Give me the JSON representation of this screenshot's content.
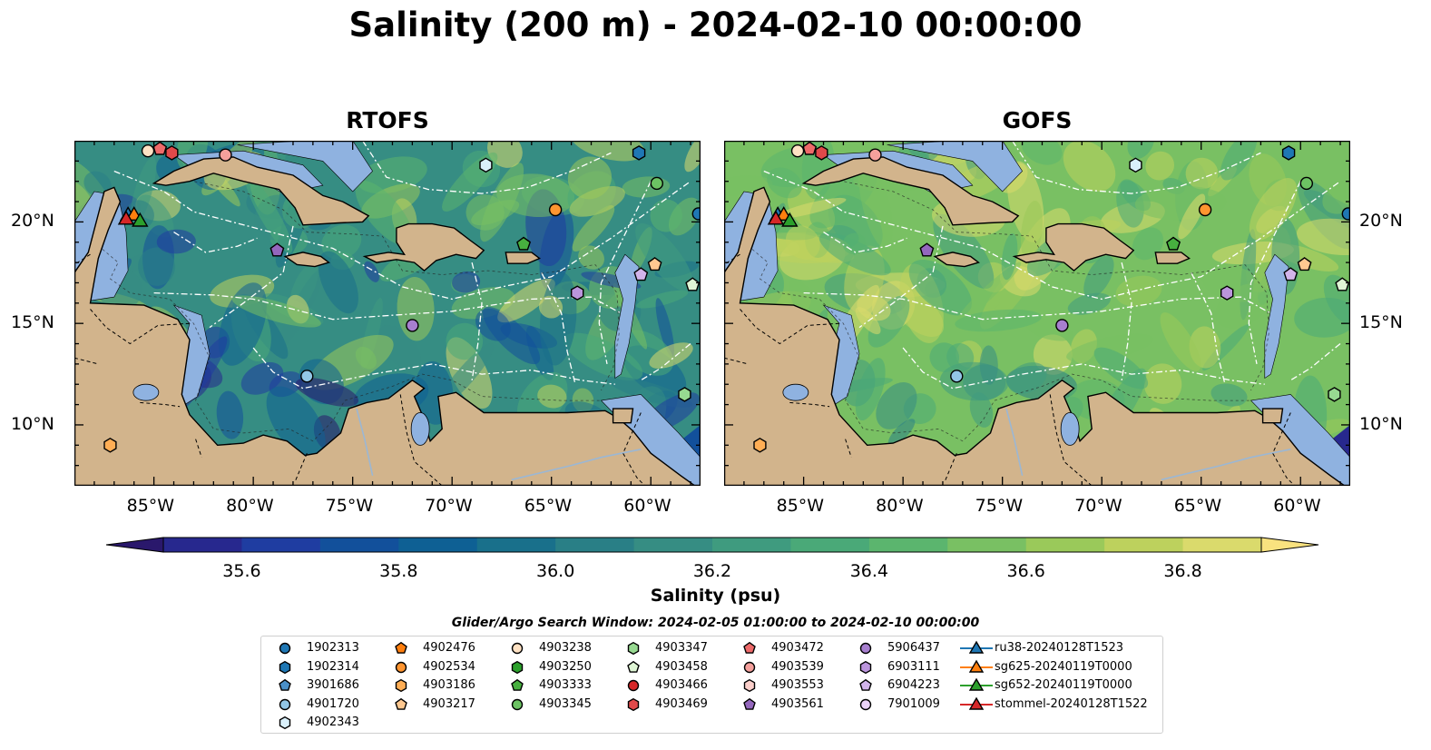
{
  "title": "Salinity (200 m) - 2024-02-10 00:00:00",
  "panels": [
    {
      "title": "RTOFS"
    },
    {
      "title": "GOFS"
    }
  ],
  "axes": {
    "lon_ticks": [
      "85°W",
      "80°W",
      "75°W",
      "70°W",
      "65°W",
      "60°W"
    ],
    "lat_ticks": [
      "20°N",
      "15°N",
      "10°N"
    ],
    "lon_range": [
      -89,
      -57.5
    ],
    "lat_range": [
      7,
      24
    ]
  },
  "colorbar": {
    "label": "Salinity (psu)",
    "ticks": [
      "35.6",
      "35.8",
      "36.0",
      "36.2",
      "36.4",
      "36.6",
      "36.8"
    ],
    "min": 35.5,
    "max": 36.9,
    "colors": [
      "#2a186c",
      "#27288e",
      "#1f3da1",
      "#12509b",
      "#0e6094",
      "#19708b",
      "#297f86",
      "#368d83",
      "#3f9b7f",
      "#4aa978",
      "#5bb56e",
      "#79c063",
      "#9ac95a",
      "#bdd15d",
      "#dada6c",
      "#f9e27f"
    ]
  },
  "legend": {
    "title": "Glider/Argo Search Window: 2024-02-05 01:00:00 to 2024-02-10 00:00:00",
    "items": [
      {
        "label": "1902313",
        "marker": "circle",
        "color": "#1f77b4"
      },
      {
        "label": "1902314",
        "marker": "hexagon",
        "color": "#1f77b4"
      },
      {
        "label": "3901686",
        "marker": "pentagon",
        "color": "#4a90c8"
      },
      {
        "label": "4901720",
        "marker": "circle",
        "color": "#92c6e6"
      },
      {
        "label": "4902343",
        "marker": "hexagon",
        "color": "#daf0fa"
      },
      {
        "label": "4902476",
        "marker": "pentagon",
        "color": "#ff7f0e"
      },
      {
        "label": "4902534",
        "marker": "circle",
        "color": "#ff9530"
      },
      {
        "label": "4903186",
        "marker": "hexagon",
        "color": "#ffae55"
      },
      {
        "label": "4903217",
        "marker": "pentagon",
        "color": "#ffc890"
      },
      {
        "label": "4903238",
        "marker": "circle",
        "color": "#ffe2c4"
      },
      {
        "label": "4903250",
        "marker": "hexagon",
        "color": "#2ca02c"
      },
      {
        "label": "4903333",
        "marker": "pentagon",
        "color": "#47b03f"
      },
      {
        "label": "4903345",
        "marker": "circle",
        "color": "#6cc363"
      },
      {
        "label": "4903347",
        "marker": "hexagon",
        "color": "#97d991"
      },
      {
        "label": "4903458",
        "marker": "pentagon",
        "color": "#dff6d5"
      },
      {
        "label": "4903466",
        "marker": "circle",
        "color": "#d62728"
      },
      {
        "label": "4903469",
        "marker": "hexagon",
        "color": "#e0494a"
      },
      {
        "label": "4903472",
        "marker": "pentagon",
        "color": "#ee6a6a"
      },
      {
        "label": "4903539",
        "marker": "circle",
        "color": "#f4a09c"
      },
      {
        "label": "4903553",
        "marker": "hexagon",
        "color": "#fbcfca"
      },
      {
        "label": "4903561",
        "marker": "pentagon",
        "color": "#9467bd"
      },
      {
        "label": "5906437",
        "marker": "circle",
        "color": "#a77fcf"
      },
      {
        "label": "6903111",
        "marker": "hexagon",
        "color": "#bb95dc"
      },
      {
        "label": "6904223",
        "marker": "pentagon",
        "color": "#d2b4ea"
      },
      {
        "label": "7901009",
        "marker": "circle",
        "color": "#ead2f7"
      },
      {
        "label": "ru38-20240128T1523",
        "marker": "triangle",
        "color": "#1f77b4"
      },
      {
        "label": "sg625-20240119T0000",
        "marker": "triangle",
        "color": "#ff7f0e"
      },
      {
        "label": "sg652-20240119T0000",
        "marker": "triangle",
        "color": "#2ca02c"
      },
      {
        "label": "stommel-20240128T1522",
        "marker": "triangle",
        "color": "#d62728"
      }
    ]
  },
  "map_markers": [
    {
      "id": "1902313",
      "lon": -57.6,
      "lat": 20.4
    },
    {
      "id": "1902314",
      "lon": -60.6,
      "lat": 23.4
    },
    {
      "id": "4901720",
      "lon": -77.3,
      "lat": 12.4
    },
    {
      "id": "4902343",
      "lon": -68.3,
      "lat": 22.8
    },
    {
      "id": "4902534",
      "lon": -64.8,
      "lat": 20.6
    },
    {
      "id": "4903186",
      "lon": -87.2,
      "lat": 9.0
    },
    {
      "id": "4903217",
      "lon": -59.8,
      "lat": 17.9
    },
    {
      "id": "4903238",
      "lon": -85.3,
      "lat": 23.5
    },
    {
      "id": "4903333",
      "lon": -66.4,
      "lat": 18.9
    },
    {
      "id": "4903345",
      "lon": -59.7,
      "lat": 21.9
    },
    {
      "id": "4903347",
      "lon": -58.3,
      "lat": 11.5
    },
    {
      "id": "4903458",
      "lon": -57.9,
      "lat": 16.9
    },
    {
      "id": "4903469",
      "lon": -84.1,
      "lat": 23.4
    },
    {
      "id": "4903472",
      "lon": -84.7,
      "lat": 23.6
    },
    {
      "id": "4903539",
      "lon": -81.4,
      "lat": 23.3
    },
    {
      "id": "4903561",
      "lon": -78.8,
      "lat": 18.6
    },
    {
      "id": "5906437",
      "lon": -72.0,
      "lat": 14.9
    },
    {
      "id": "6903111",
      "lon": -63.7,
      "lat": 16.5
    },
    {
      "id": "6904223",
      "lon": -60.5,
      "lat": 17.4
    },
    {
      "id": "ru38-20240128T1523",
      "lon": -86.3,
      "lat": 20.3
    },
    {
      "id": "sg625-20240119T0000",
      "lon": -86.0,
      "lat": 20.3
    },
    {
      "id": "sg652-20240119T0000",
      "lon": -85.7,
      "lat": 20.0
    },
    {
      "id": "stommel-20240128T1522",
      "lon": -86.4,
      "lat": 20.1
    }
  ]
}
